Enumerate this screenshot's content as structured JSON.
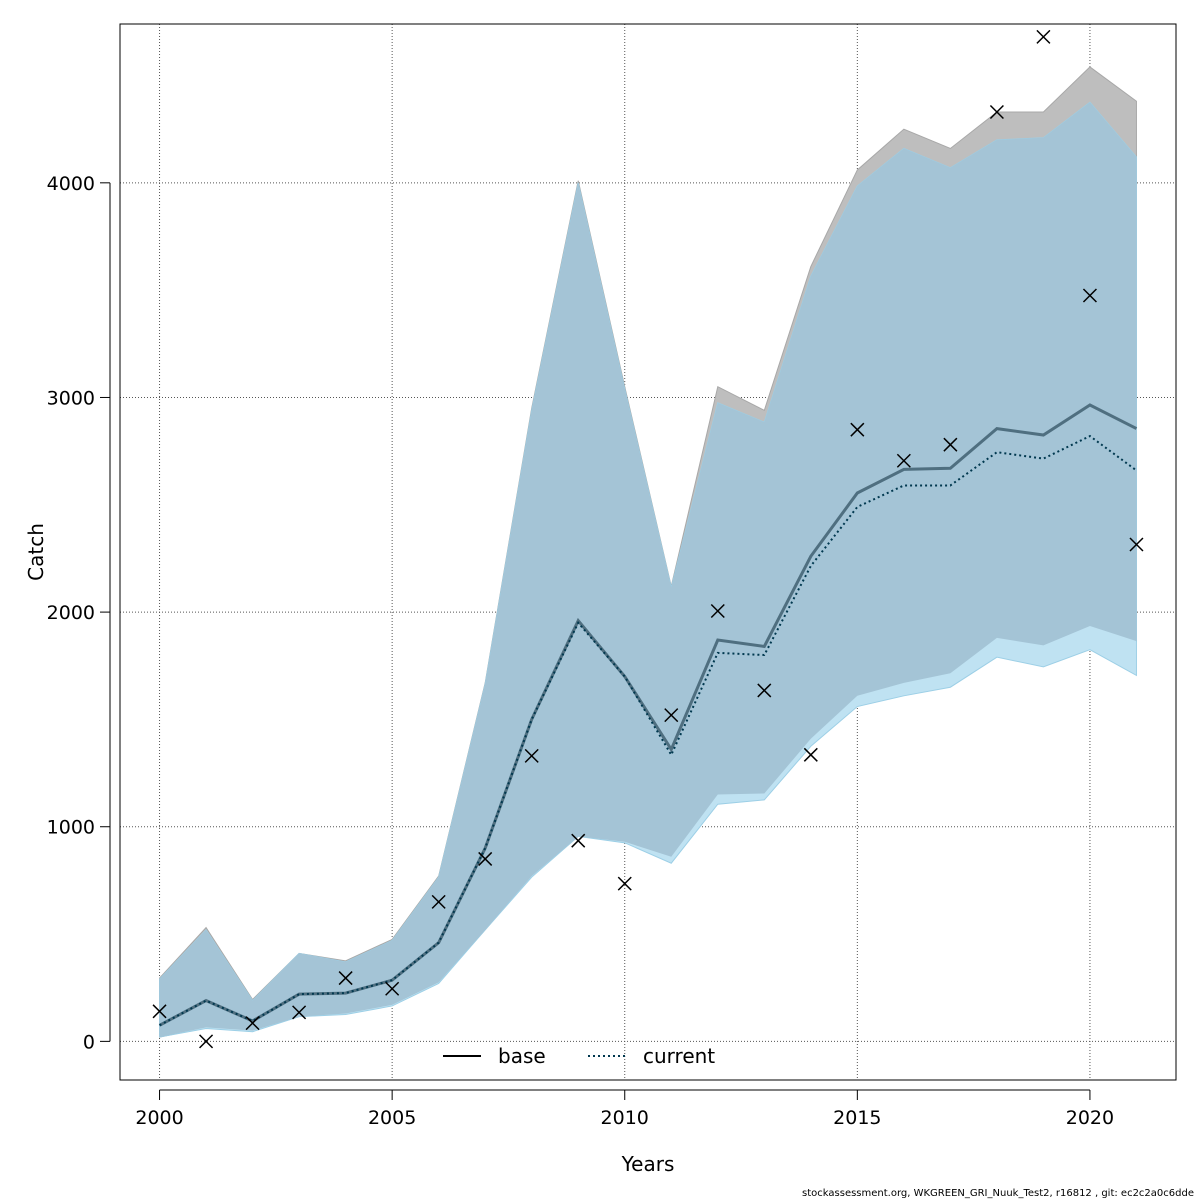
{
  "chart_data": {
    "type": "line",
    "title": "",
    "xlabel": "Years",
    "ylabel": "Catch",
    "xlim": [
      1999.15,
      2021.85
    ],
    "ylim": [
      -180,
      4740
    ],
    "x_ticks": [
      2000,
      2005,
      2010,
      2015,
      2020
    ],
    "y_ticks": [
      0,
      1000,
      2000,
      3000,
      4000
    ],
    "grid": true,
    "legend_position": "bottom-center",
    "x": [
      2000,
      2001,
      2002,
      2003,
      2004,
      2005,
      2006,
      2007,
      2008,
      2009,
      2010,
      2011,
      2012,
      2013,
      2014,
      2015,
      2016,
      2017,
      2018,
      2019,
      2020,
      2021
    ],
    "series": [
      {
        "name": "base",
        "line_style": "solid",
        "color": "#000000",
        "band_color": "#bebebe",
        "values": [
          75,
          190,
          95,
          220,
          225,
          285,
          460,
          900,
          1500,
          1960,
          1700,
          1360,
          1870,
          1840,
          2260,
          2555,
          2665,
          2670,
          2855,
          2825,
          2965,
          2855
        ],
        "lower": [
          20,
          65,
          50,
          115,
          130,
          170,
          275,
          520,
          770,
          955,
          930,
          860,
          1150,
          1155,
          1410,
          1610,
          1670,
          1715,
          1880,
          1845,
          1935,
          1865
        ],
        "upper": [
          295,
          530,
          195,
          410,
          375,
          475,
          770,
          1670,
          2950,
          4010,
          3050,
          2120,
          3050,
          2940,
          3610,
          4060,
          4250,
          4160,
          4330,
          4330,
          4540,
          4380
        ]
      },
      {
        "name": "current",
        "line_style": "dotted",
        "color": "#00384f",
        "band_color": "#bfe2f2",
        "values": [
          75,
          190,
          95,
          220,
          225,
          285,
          460,
          900,
          1500,
          1950,
          1700,
          1335,
          1810,
          1800,
          2215,
          2490,
          2590,
          2590,
          2745,
          2715,
          2820,
          2660
        ],
        "lower": [
          20,
          60,
          45,
          115,
          125,
          165,
          270,
          520,
          765,
          955,
          925,
          830,
          1105,
          1125,
          1375,
          1560,
          1610,
          1650,
          1790,
          1745,
          1825,
          1705
        ],
        "upper": [
          290,
          520,
          190,
          410,
          370,
          470,
          765,
          1665,
          2940,
          4000,
          3040,
          2115,
          2975,
          2885,
          3565,
          3985,
          4160,
          4070,
          4200,
          4210,
          4375,
          4120
        ]
      }
    ],
    "observations": {
      "marker": "x",
      "x": [
        2000,
        2001,
        2002,
        2003,
        2004,
        2005,
        2006,
        2007,
        2008,
        2009,
        2010,
        2011,
        2012,
        2013,
        2014,
        2015,
        2016,
        2017,
        2018,
        2019,
        2020,
        2021
      ],
      "values": [
        140,
        0,
        85,
        135,
        295,
        245,
        650,
        850,
        1330,
        935,
        735,
        1520,
        2005,
        1635,
        1335,
        2850,
        2705,
        2780,
        4330,
        4680,
        3475,
        2315
      ]
    }
  },
  "footer": "stockassessment.org, WKGREEN_GRI_Nuuk_Test2, r16812 , git: ec2c2a0c6dde"
}
